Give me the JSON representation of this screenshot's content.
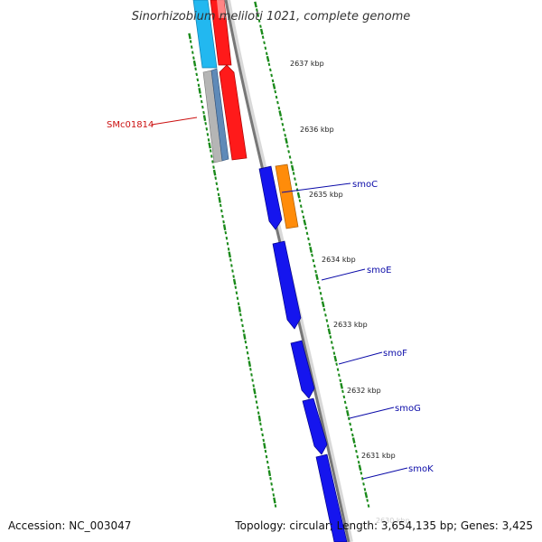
{
  "title": "Sinorhizobium meliloti 1021, complete genome",
  "footer": {
    "accession": "Accession: NC_003047",
    "summary": "Topology: circular; Length: 3,654,135 bp; Genes: 3,425"
  },
  "colors": {
    "backbone": "#777777",
    "tick": "#1a8a1a",
    "red": "#ff1a1a",
    "blue": "#1515ee",
    "cyan": "#22b8f0",
    "gray": "#a8a8a8",
    "steel": "#5f8ab8",
    "orange": "#ff8c0a",
    "label_red": "#cc1111",
    "label_blue": "#0a0aa8"
  },
  "scale_labels": [
    "2637 kbp",
    "2636 kbp",
    "2635 kbp",
    "2634 kbp",
    "2633 kbp",
    "2632 kbp",
    "2631 kbp",
    "2630 kbp"
  ],
  "genes": [
    {
      "label": "SMc01814",
      "color": "label_red"
    },
    {
      "label": "smoC",
      "color": "label_blue"
    },
    {
      "label": "smoE",
      "color": "label_blue"
    },
    {
      "label": "smoF",
      "color": "label_blue"
    },
    {
      "label": "smoG",
      "color": "label_blue"
    },
    {
      "label": "smoK",
      "color": "label_blue"
    }
  ]
}
